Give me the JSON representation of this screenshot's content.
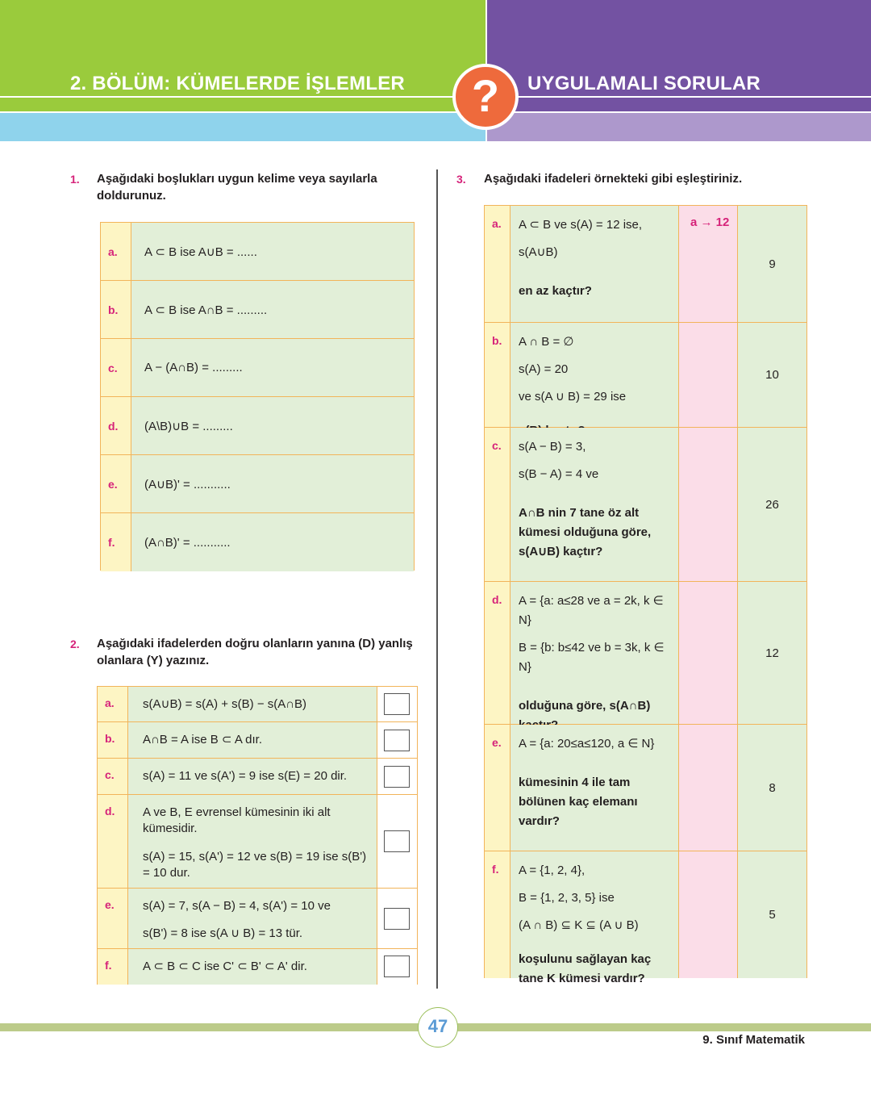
{
  "header": {
    "left_title": "2. BÖLÜM: KÜMELERDE İŞLEMLER",
    "icon": "?",
    "right_title": "UYGULAMALI SORULAR"
  },
  "question1": {
    "number": "1.",
    "prompt": "Aşağıdaki boşlukları uygun kelime veya sayılarla doldurunuz.",
    "rows": [
      {
        "label": "a.",
        "text": "A ⊂ B ise A∪B = ......"
      },
      {
        "label": "b.",
        "text": "A ⊂ B ise A∩B = ........."
      },
      {
        "label": "c.",
        "text": "A − (A∩B) = ........."
      },
      {
        "label": "d.",
        "text": "(A\\B)∪B = ........."
      },
      {
        "label": "e.",
        "text": "(A∪B)' = ..........."
      },
      {
        "label": "f.",
        "text": "(A∩B)' = ..........."
      }
    ]
  },
  "question2": {
    "number": "2.",
    "prompt": "Aşağıdaki ifadelerden doğru olanların yanına (D) yanlış olanlara (Y) yazınız.",
    "rows": [
      {
        "label": "a.",
        "lines": [
          "s(A∪B) = s(A) + s(B) − s(A∩B)"
        ]
      },
      {
        "label": "b.",
        "lines": [
          "A∩B = A ise B ⊂ A dır."
        ]
      },
      {
        "label": "c.",
        "lines": [
          "s(A) = 11 ve s(A') = 9 ise s(E) = 20 dir."
        ]
      },
      {
        "label": "d.",
        "lines": [
          "A ve B, E evrensel kümesinin iki alt kümesidir.",
          "s(A) = 15, s(A') = 12 ve s(B) = 19 ise s(B') = 10 dur."
        ]
      },
      {
        "label": "e.",
        "lines": [
          "s(A) = 7, s(A − B) = 4, s(A') = 10 ve",
          "s(B') = 8 ise s(A ∪ B) = 13 tür."
        ]
      },
      {
        "label": "f.",
        "lines": [
          "A ⊂ B ⊂ C ise C' ⊂ B' ⊂ A' dir."
        ]
      }
    ]
  },
  "question3": {
    "number": "3.",
    "prompt": "Aşağıdaki ifadeleri örnekteki gibi eşleştiriniz.",
    "rows": [
      {
        "label": "a.",
        "lines": [
          "A ⊂ B ve s(A) = 12 ise,",
          "s(A∪B)"
        ],
        "question": "en az kaçtır?",
        "answer": "a → 12",
        "number": "9"
      },
      {
        "label": "b.",
        "lines": [
          "A ∩ B = ∅",
          "s(A) = 20",
          "ve s(A ∪ B) = 29 ise"
        ],
        "question": "s(B) kaçtır?",
        "number": "10"
      },
      {
        "label": "c.",
        "lines": [
          "s(A − B) = 3,",
          "s(B − A) = 4 ve"
        ],
        "question": "A∩B nin 7 tane öz alt kümesi olduğuna göre, s(A∪B) kaçtır?",
        "number": "26"
      },
      {
        "label": "d.",
        "lines": [
          "A = {a: a≤28 ve a = 2k, k ∈ N}",
          "B = {b: b≤42 ve b = 3k, k ∈ N}"
        ],
        "question": "olduğuna göre, s(A∩B) kaçtır?",
        "number": "12"
      },
      {
        "label": "e.",
        "lines": [
          "A = {a: 20≤a≤120, a ∈ N}"
        ],
        "question": "kümesinin 4 ile tam bölünen kaç elemanı vardır?",
        "number": "8"
      },
      {
        "label": "f.",
        "lines": [
          "A = {1, 2, 4},",
          "B = {1, 2, 3, 5} ise",
          "(A ∩ B) ⊆ K ⊆ (A ∪ B)"
        ],
        "question": "koşulunu sağlayan kaç tane K kümesi vardır?",
        "number": "5"
      }
    ]
  },
  "footer": {
    "page_number": "47",
    "book": "9. Sınıf Matematik"
  }
}
